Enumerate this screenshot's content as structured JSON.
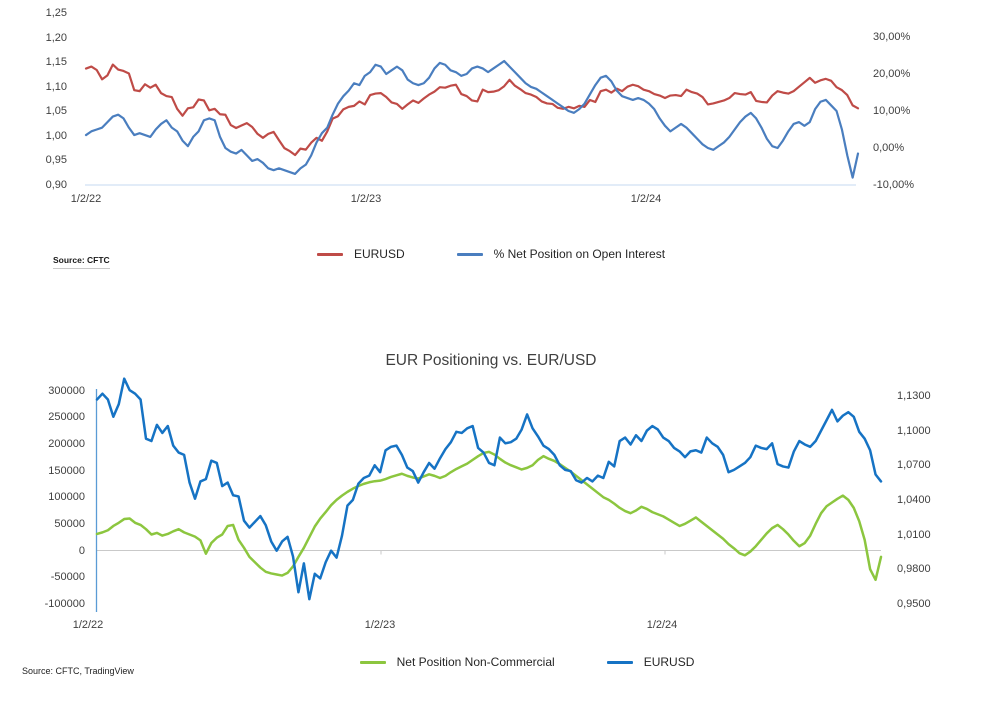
{
  "chart_data": [
    {
      "type": "line",
      "title": "",
      "source": "Source: CFTC",
      "categories": [
        "1/2/22",
        "1/2/23",
        "1/2/24"
      ],
      "left_axis": {
        "labels": [
          "1,25",
          "1,20",
          "1,15",
          "1,10",
          "1,05",
          "1,00",
          "0,95",
          "0,90"
        ],
        "values": [
          1.25,
          1.2,
          1.15,
          1.1,
          1.05,
          1.0,
          0.95,
          0.9
        ],
        "min": 0.9,
        "max": 1.25
      },
      "right_axis": {
        "labels": [
          "30,00%",
          "20,00%",
          "10,00%",
          "0,00%",
          "-10,00%"
        ],
        "values": [
          30,
          20,
          10,
          0,
          -10
        ],
        "min": -10,
        "max": 30
      },
      "grid": "baseline-only",
      "legend_position": "bottom-center",
      "series": [
        {
          "name": "EURUSD",
          "axis": "left",
          "color": "#bf4b47",
          "values": [
            1.137,
            1.141,
            1.134,
            1.115,
            1.123,
            1.145,
            1.135,
            1.132,
            1.127,
            1.093,
            1.091,
            1.105,
            1.098,
            1.104,
            1.087,
            1.081,
            1.079,
            1.055,
            1.041,
            1.056,
            1.058,
            1.074,
            1.072,
            1.052,
            1.055,
            1.044,
            1.043,
            1.022,
            1.016,
            1.021,
            1.026,
            1.018,
            1.004,
            0.996,
            1.004,
            1.008,
            0.991,
            0.975,
            0.969,
            0.961,
            0.974,
            0.972,
            0.986,
            0.996,
            0.99,
            1.009,
            1.035,
            1.04,
            1.054,
            1.059,
            1.061,
            1.07,
            1.064,
            1.083,
            1.086,
            1.087,
            1.079,
            1.068,
            1.065,
            1.055,
            1.064,
            1.072,
            1.067,
            1.076,
            1.084,
            1.09,
            1.099,
            1.098,
            1.102,
            1.104,
            1.085,
            1.081,
            1.072,
            1.07,
            1.094,
            1.089,
            1.09,
            1.093,
            1.101,
            1.114,
            1.102,
            1.095,
            1.087,
            1.084,
            1.079,
            1.07,
            1.066,
            1.065,
            1.057,
            1.055,
            1.059,
            1.056,
            1.061,
            1.059,
            1.073,
            1.069,
            1.091,
            1.094,
            1.088,
            1.096,
            1.091,
            1.1,
            1.104,
            1.101,
            1.094,
            1.091,
            1.085,
            1.082,
            1.077,
            1.082,
            1.083,
            1.081,
            1.094,
            1.089,
            1.086,
            1.079,
            1.064,
            1.066,
            1.069,
            1.072,
            1.077,
            1.087,
            1.085,
            1.084,
            1.089,
            1.071,
            1.069,
            1.068,
            1.082,
            1.091,
            1.088,
            1.086,
            1.091,
            1.1,
            1.109,
            1.118,
            1.108,
            1.113,
            1.116,
            1.112,
            1.099,
            1.093,
            1.083,
            1.062,
            1.056
          ]
        },
        {
          "name": "% Net Position on Open Interest",
          "axis": "right",
          "color": "#4a7ebf",
          "values": [
            3.5,
            4.5,
            5.0,
            5.5,
            7.0,
            8.5,
            9.0,
            8.0,
            5.5,
            3.5,
            4.0,
            3.5,
            3.0,
            5.0,
            6.5,
            7.5,
            5.5,
            4.5,
            2.0,
            0.5,
            3.0,
            4.5,
            7.5,
            8.0,
            7.5,
            3.0,
            0.0,
            -1.0,
            -1.5,
            -0.5,
            -2.0,
            -3.5,
            -3.0,
            -4.0,
            -5.5,
            -6.0,
            -5.5,
            -6.0,
            -6.5,
            -7.0,
            -5.5,
            -4.5,
            -2.0,
            1.5,
            4.0,
            5.5,
            9.0,
            12.0,
            14.0,
            15.5,
            17.5,
            17.0,
            19.5,
            20.5,
            22.5,
            22.0,
            20.0,
            21.0,
            22.0,
            21.0,
            18.5,
            17.5,
            17.0,
            17.5,
            19.0,
            21.5,
            23.0,
            22.5,
            21.0,
            20.5,
            19.5,
            20.0,
            21.5,
            22.0,
            21.5,
            20.5,
            21.5,
            22.5,
            23.5,
            22.0,
            20.5,
            19.0,
            17.5,
            16.5,
            16.0,
            15.0,
            14.0,
            13.0,
            12.0,
            11.0,
            10.0,
            9.5,
            10.5,
            12.0,
            14.5,
            17.0,
            19.0,
            19.5,
            18.0,
            15.5,
            14.0,
            13.5,
            13.0,
            13.5,
            13.0,
            12.0,
            10.5,
            8.0,
            6.0,
            4.5,
            5.5,
            6.5,
            5.5,
            4.0,
            2.5,
            1.0,
            0.0,
            -0.5,
            0.5,
            1.5,
            3.0,
            5.0,
            7.0,
            8.5,
            9.5,
            8.0,
            5.5,
            2.5,
            0.5,
            0.0,
            2.0,
            4.5,
            6.5,
            7.0,
            6.0,
            7.0,
            10.5,
            12.5,
            13.0,
            11.5,
            10.0,
            5.0,
            -2.0,
            -8.0,
            -1.5
          ]
        }
      ]
    },
    {
      "type": "line",
      "title": "EUR Positioning vs. EUR/USD",
      "source": "Source: CFTC, TradingView",
      "categories": [
        "1/2/22",
        "1/2/23",
        "1/2/24"
      ],
      "left_axis": {
        "labels": [
          "300000",
          "250000",
          "200000",
          "150000",
          "100000",
          "50000",
          "0",
          "-50000",
          "-100000"
        ],
        "values": [
          300000,
          250000,
          200000,
          150000,
          100000,
          50000,
          0,
          -50000,
          -100000
        ],
        "min": -100000,
        "max": 300000
      },
      "right_axis": {
        "labels": [
          "1,1300",
          "1,1000",
          "1,0700",
          "1,0400",
          "1,0100",
          "0,9800",
          "0,9500"
        ],
        "values": [
          1.13,
          1.1,
          1.07,
          1.04,
          1.01,
          0.98,
          0.95
        ],
        "min": 0.95,
        "max": 1.13
      },
      "grid": "zero-line",
      "legend_position": "bottom-center",
      "series": [
        {
          "name": "Net Position Non-Commercial",
          "axis": "left",
          "color": "#8cc63f",
          "values": [
            31000,
            34000,
            38000,
            46000,
            52000,
            59000,
            60000,
            52000,
            48000,
            40000,
            30000,
            33000,
            28000,
            31000,
            36000,
            40000,
            34000,
            30000,
            26000,
            19000,
            -6000,
            14000,
            24000,
            30000,
            46000,
            48000,
            20000,
            5000,
            -12000,
            -22000,
            -32000,
            -40000,
            -43000,
            -45000,
            -47000,
            -42000,
            -30000,
            -12000,
            5000,
            25000,
            45000,
            60000,
            72000,
            85000,
            95000,
            103000,
            110000,
            116000,
            121000,
            125000,
            128000,
            130000,
            131000,
            134000,
            138000,
            141000,
            144000,
            140000,
            137000,
            135000,
            139000,
            143000,
            140000,
            136000,
            140000,
            147000,
            153000,
            158000,
            163000,
            170000,
            177000,
            183000,
            185000,
            180000,
            172000,
            165000,
            160000,
            156000,
            152000,
            155000,
            160000,
            170000,
            177000,
            172000,
            168000,
            162000,
            155000,
            148000,
            140000,
            132000,
            124000,
            116000,
            108000,
            100000,
            95000,
            88000,
            80000,
            74000,
            70000,
            75000,
            82000,
            78000,
            72000,
            68000,
            64000,
            58000,
            52000,
            46000,
            50000,
            56000,
            62000,
            54000,
            46000,
            38000,
            30000,
            22000,
            12000,
            4000,
            -5000,
            -9000,
            -2000,
            8000,
            20000,
            32000,
            42000,
            48000,
            40000,
            30000,
            18000,
            8000,
            14000,
            28000,
            50000,
            70000,
            83000,
            90000,
            97000,
            103000,
            95000,
            80000,
            55000,
            20000,
            -35000,
            -55000,
            -12000
          ]
        },
        {
          "name": "EURUSD",
          "axis": "right",
          "color": "#1673c4",
          "values": [
            1.127,
            1.132,
            1.127,
            1.112,
            1.123,
            1.145,
            1.135,
            1.132,
            1.127,
            1.093,
            1.091,
            1.105,
            1.098,
            1.104,
            1.087,
            1.081,
            1.079,
            1.055,
            1.041,
            1.056,
            1.058,
            1.074,
            1.072,
            1.052,
            1.055,
            1.044,
            1.043,
            1.022,
            1.016,
            1.021,
            1.026,
            1.018,
            1.004,
            0.996,
            1.004,
            1.008,
            0.991,
            0.96,
            0.985,
            0.954,
            0.976,
            0.972,
            0.986,
            0.996,
            0.99,
            1.009,
            1.035,
            1.04,
            1.054,
            1.059,
            1.061,
            1.07,
            1.064,
            1.083,
            1.086,
            1.087,
            1.079,
            1.068,
            1.065,
            1.055,
            1.064,
            1.072,
            1.067,
            1.076,
            1.084,
            1.09,
            1.099,
            1.098,
            1.102,
            1.104,
            1.085,
            1.081,
            1.072,
            1.07,
            1.094,
            1.089,
            1.09,
            1.093,
            1.101,
            1.114,
            1.102,
            1.095,
            1.087,
            1.084,
            1.079,
            1.07,
            1.066,
            1.065,
            1.057,
            1.055,
            1.059,
            1.056,
            1.061,
            1.059,
            1.073,
            1.069,
            1.091,
            1.094,
            1.088,
            1.096,
            1.091,
            1.1,
            1.104,
            1.101,
            1.094,
            1.091,
            1.085,
            1.082,
            1.077,
            1.082,
            1.083,
            1.081,
            1.094,
            1.089,
            1.086,
            1.079,
            1.064,
            1.066,
            1.069,
            1.072,
            1.077,
            1.087,
            1.085,
            1.084,
            1.089,
            1.071,
            1.069,
            1.068,
            1.082,
            1.091,
            1.088,
            1.086,
            1.091,
            1.1,
            1.109,
            1.118,
            1.108,
            1.113,
            1.116,
            1.112,
            1.099,
            1.093,
            1.083,
            1.062,
            1.056
          ]
        }
      ]
    }
  ],
  "colors": {
    "top_baseline": "#c5d9f1",
    "bottom_zero_line": "#c9c9c9",
    "bottom_axis_line": "#5b9bd5",
    "tick_text": "#404040",
    "title_text": "#3f3f3f"
  }
}
